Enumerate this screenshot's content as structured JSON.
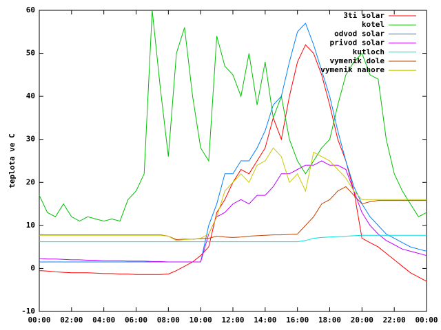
{
  "chart_data": {
    "type": "line",
    "y_label": "teplota ve C",
    "x": [
      0,
      0.5,
      1,
      1.5,
      2,
      2.5,
      3,
      3.5,
      4,
      4.5,
      5,
      5.5,
      6,
      6.5,
      7,
      7.5,
      8,
      8.5,
      9,
      9.5,
      10,
      10.5,
      11,
      11.5,
      12,
      12.5,
      13,
      13.5,
      14,
      14.5,
      15,
      15.5,
      16,
      16.5,
      17,
      17.5,
      18,
      18.5,
      19,
      19.5,
      20,
      20.5,
      21,
      21.5,
      22,
      22.5,
      23,
      23.5,
      24
    ],
    "xlim": [
      0,
      24
    ],
    "xticks": [
      {
        "value": 0,
        "label": "00:00"
      },
      {
        "value": 2,
        "label": "02:00"
      },
      {
        "value": 4,
        "label": "04:00"
      },
      {
        "value": 6,
        "label": "06:00"
      },
      {
        "value": 8,
        "label": "08:00"
      },
      {
        "value": 10,
        "label": "10:00"
      },
      {
        "value": 12,
        "label": "12:00"
      },
      {
        "value": 14,
        "label": "14:00"
      },
      {
        "value": 16,
        "label": "16:00"
      },
      {
        "value": 18,
        "label": "18:00"
      },
      {
        "value": 20,
        "label": "20:00"
      },
      {
        "value": 22,
        "label": "22:00"
      },
      {
        "value": 24,
        "label": "00:00"
      }
    ],
    "ylim": [
      -10,
      60
    ],
    "yticks": [
      -10,
      0,
      10,
      20,
      30,
      40,
      50,
      60
    ],
    "grid": false,
    "legend": "top-right",
    "series": [
      {
        "name": "3ti solar",
        "color": "#ff0000",
        "values": [
          -0.5,
          -0.6,
          -0.8,
          -0.9,
          -1,
          -1,
          -1,
          -1.1,
          -1.2,
          -1.2,
          -1.3,
          -1.3,
          -1.4,
          -1.4,
          -1.4,
          -1.4,
          -1.3,
          -0.5,
          0.5,
          1.5,
          3,
          5,
          13,
          16,
          20,
          23,
          22,
          25,
          28,
          35,
          30,
          40,
          48,
          52,
          50,
          45,
          38,
          30,
          25,
          18,
          7,
          6,
          5,
          3.5,
          2,
          0.5,
          -1,
          -2,
          -3
        ]
      },
      {
        "name": "kotel",
        "color": "#00c000",
        "values": [
          17,
          13,
          12,
          15,
          12,
          11,
          12,
          11.5,
          11,
          11.5,
          11,
          16,
          18,
          22,
          60,
          42,
          26,
          50,
          56,
          40,
          28,
          25,
          54,
          47,
          45,
          40,
          50,
          38,
          48,
          35,
          40,
          30,
          25,
          22,
          25,
          28,
          30,
          38,
          45,
          48,
          50,
          45,
          44,
          30,
          22,
          18,
          15,
          12,
          13
        ]
      },
      {
        "name": "odvod solar",
        "color": "#0080ff",
        "values": [
          1.5,
          1.5,
          1.5,
          1.5,
          1.5,
          1.5,
          1.5,
          1.5,
          1.5,
          1.5,
          1.5,
          1.5,
          1.5,
          1.5,
          1.5,
          1.5,
          1.5,
          1.5,
          1.5,
          1.5,
          1.5,
          10,
          15,
          22,
          22,
          25,
          25,
          28,
          32,
          38,
          40,
          48,
          55,
          57,
          52,
          46,
          40,
          32,
          25,
          19,
          15,
          12,
          10,
          8,
          7,
          6,
          5,
          4.5,
          4
        ]
      },
      {
        "name": "privod solar",
        "color": "#c000ff",
        "values": [
          2.3,
          2.2,
          2.2,
          2.1,
          2,
          2,
          1.9,
          1.9,
          1.8,
          1.8,
          1.8,
          1.7,
          1.7,
          1.7,
          1.6,
          1.6,
          1.5,
          1.5,
          1.5,
          1.5,
          1.5,
          8,
          12,
          13,
          15,
          16,
          15,
          17,
          17,
          19,
          22,
          22,
          23,
          24,
          24,
          25,
          24,
          24,
          23,
          18,
          13,
          10,
          8,
          6.5,
          5.5,
          4.5,
          4,
          3.5,
          3
        ]
      },
      {
        "name": "kutloch",
        "color": "#00e0e0",
        "values": [
          6.2,
          6.2,
          6.2,
          6.2,
          6.2,
          6.2,
          6.2,
          6.2,
          6.2,
          6.2,
          6.2,
          6.2,
          6.2,
          6.2,
          6.2,
          6.2,
          6.2,
          6.2,
          6.2,
          6.2,
          6.2,
          6.2,
          6.2,
          6.2,
          6.2,
          6.2,
          6.2,
          6.2,
          6.2,
          6.2,
          6.2,
          6.2,
          6.2,
          6.5,
          7,
          7.2,
          7.3,
          7.4,
          7.5,
          7.6,
          7.7,
          7.7,
          7.7,
          7.7,
          7.7,
          7.7,
          7.7,
          7.7,
          7.7
        ]
      },
      {
        "name": "vymenik dole",
        "color": "#c04000",
        "values": [
          7.8,
          7.8,
          7.8,
          7.8,
          7.8,
          7.8,
          7.8,
          7.8,
          7.8,
          7.8,
          7.8,
          7.8,
          7.8,
          7.8,
          7.8,
          7.8,
          7.5,
          6.7,
          6.8,
          6.8,
          6.9,
          7,
          7.5,
          7.3,
          7.2,
          7.3,
          7.5,
          7.6,
          7.7,
          7.8,
          7.8,
          7.9,
          8,
          10,
          12,
          15,
          16,
          18,
          19,
          17,
          15,
          15.5,
          15.8,
          15.8,
          15.8,
          15.8,
          15.8,
          15.8,
          15.8
        ]
      },
      {
        "name": "vymenik nahore",
        "color": "#c8c800",
        "values": [
          7.7,
          7.7,
          7.7,
          7.7,
          7.7,
          7.7,
          7.7,
          7.7,
          7.7,
          7.7,
          7.7,
          7.7,
          7.7,
          7.7,
          7.7,
          7.7,
          7.5,
          6.5,
          6.7,
          6.8,
          7,
          8,
          12,
          18,
          20,
          22,
          20,
          24,
          25,
          28,
          26,
          20,
          22,
          18,
          27,
          26,
          25,
          23,
          21,
          18,
          16,
          16,
          16,
          16,
          16,
          16,
          16,
          16,
          16
        ]
      }
    ]
  }
}
